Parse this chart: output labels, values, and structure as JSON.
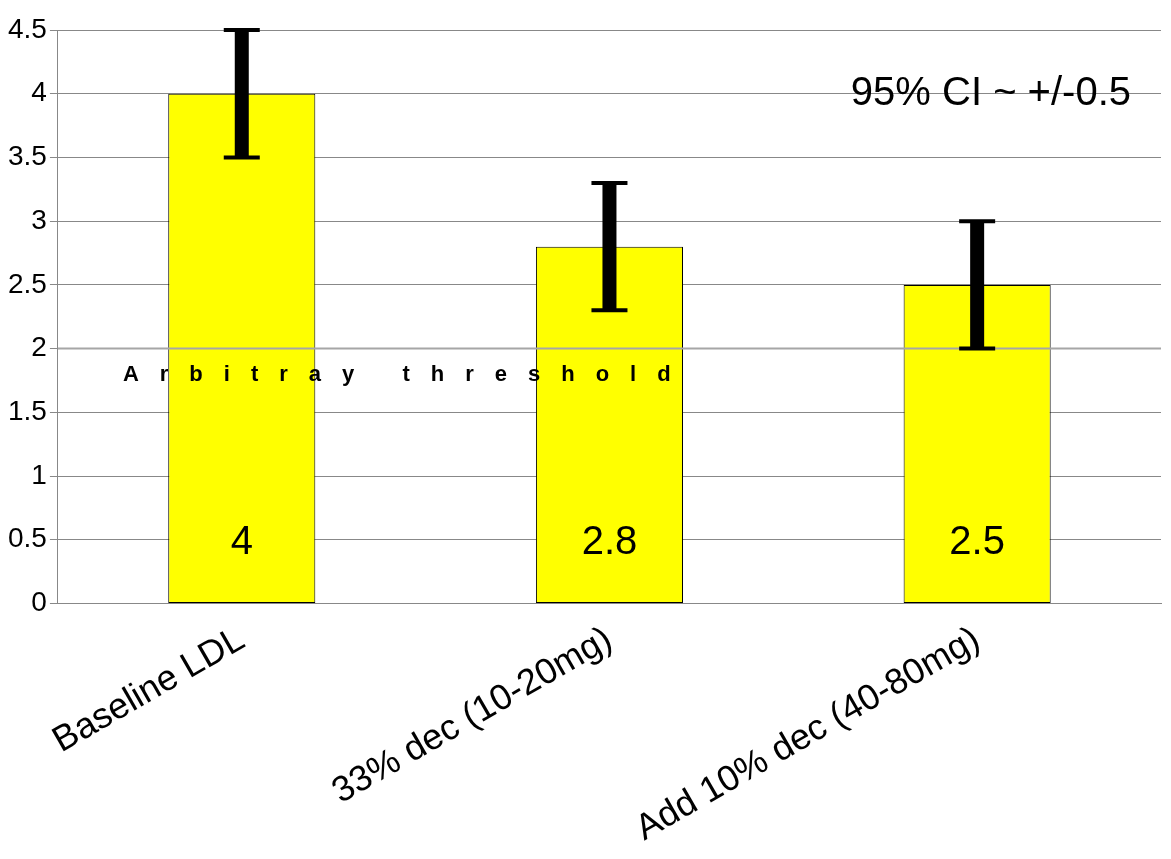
{
  "chart_data": {
    "type": "bar",
    "categories": [
      "Baseline LDL",
      "33% dec (10-20mg)",
      "Add 10% dec (40-80mg)"
    ],
    "values": [
      4,
      2.8,
      2.5
    ],
    "color": "#ffff00",
    "errors": [
      0.5,
      0.5,
      0.5
    ],
    "data_labels": true,
    "ylim": [
      0,
      4.5
    ],
    "yticks": [
      0,
      0.5,
      1,
      1.5,
      2,
      2.5,
      3,
      3.5,
      4,
      4.5
    ],
    "grid": "y",
    "legend": false,
    "ref_lines": [
      {
        "axis": "y",
        "value": 2,
        "label": "Arbitray threshold",
        "color": "#a6a6a6"
      }
    ],
    "annotations": [
      "95% CI ~ +/-0.5"
    ]
  }
}
